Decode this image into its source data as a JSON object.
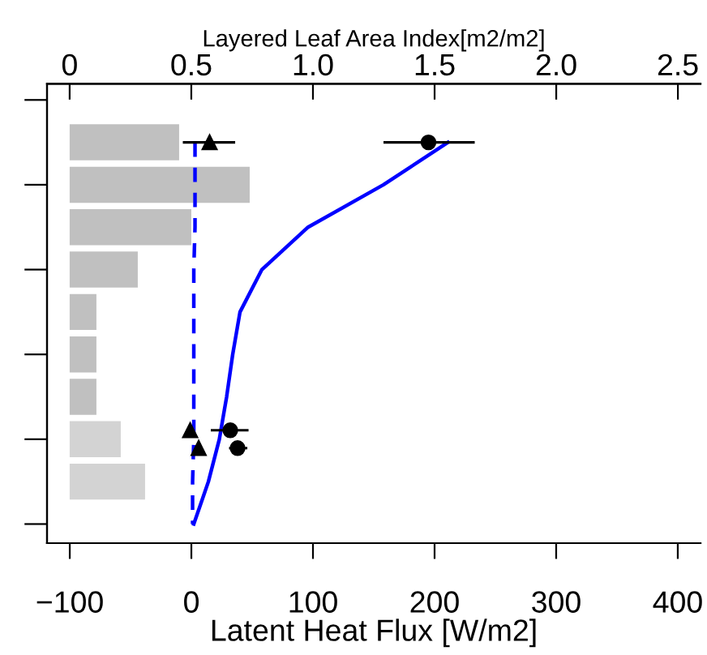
{
  "chart_data": {
    "type": "bar",
    "orientation": "horizontal",
    "xlabel": "Latent Heat Flux [W/m2]",
    "x2label": "Layered Leaf Area Index[m2/m2]",
    "categories": [
      null,
      null,
      null,
      null,
      null,
      null,
      null,
      null,
      null,
      null
    ],
    "xlim": [
      -118.7,
      418.7
    ],
    "xticks": [
      {
        "value": -100,
        "label": "−100"
      },
      0,
      100,
      200,
      300,
      400
    ],
    "x2lim": [
      -0.093,
      2.593
    ],
    "x2ticks": [
      0,
      0.5,
      {
        "value": 1,
        "label": "1.0"
      },
      1.5,
      {
        "value": 2,
        "label": "2.0"
      },
      2.5
    ],
    "grid": false,
    "legend": false,
    "series": [
      {
        "axis": "x2",
        "values": [
          0.45,
          0.74,
          0.5,
          0.28,
          0.11,
          0.11,
          0.11,
          0.21,
          0.31,
          0
        ],
        "colors": [
          "#c0c0c0",
          "#c0c0c0",
          "#c0c0c0",
          "#c0c0c0",
          "#c0c0c0",
          "#c0c0c0",
          "#c0c0c0",
          "#d3d3d3",
          "#d3d3d3",
          "#d3d3d3"
        ]
      },
      {
        "type": "line",
        "color": "#0000ff",
        "line_style": "solid",
        "marker": "none",
        "values": [
          211,
          158,
          96,
          58,
          40,
          34,
          29,
          23,
          14,
          2
        ]
      },
      {
        "type": "line",
        "color": "#0000ff",
        "line_style": "dashed",
        "marker": "none",
        "values": [
          3,
          3,
          3,
          2,
          2,
          2,
          2,
          2,
          1,
          1
        ]
      },
      {
        "type": "scatter",
        "color": "#000000",
        "marker": "circle",
        "values": [
          195,
          null,
          null,
          null,
          null,
          null,
          null,
          32,
          null,
          null
        ],
        "errors": [
          [
            159,
            232
          ],
          null,
          null,
          null,
          null,
          null,
          null,
          [
            17,
            46
          ],
          null,
          null
        ]
      },
      {
        "type": "scatter",
        "color": "#000000",
        "marker": "circle",
        "values": [
          null,
          null,
          null,
          null,
          null,
          null,
          null,
          38,
          null,
          null
        ],
        "errors": [
          null,
          null,
          null,
          null,
          null,
          null,
          null,
          [
            32,
            45
          ],
          null,
          null
        ]
      },
      {
        "type": "scatter",
        "color": "#000000",
        "marker": "triangle",
        "values": [
          15,
          null,
          null,
          null,
          null,
          null,
          null,
          -1,
          null,
          null
        ],
        "errors": [
          [
            -6,
            35
          ],
          null,
          null,
          null,
          null,
          null,
          null,
          null,
          null,
          null
        ]
      },
      {
        "type": "scatter",
        "color": "#000000",
        "marker": "triangle",
        "values": [
          null,
          null,
          null,
          null,
          null,
          null,
          null,
          6,
          null,
          null
        ]
      }
    ]
  }
}
